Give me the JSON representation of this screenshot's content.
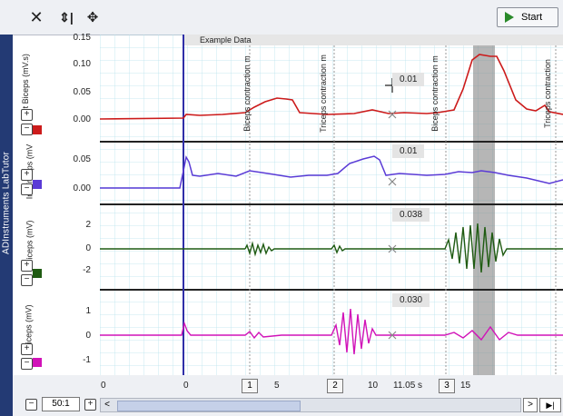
{
  "toolbar": {
    "close_icon": "close-icon",
    "autoscale_icon": "autoscale-icon",
    "move_icon": "move-icon",
    "start_label": "Start"
  },
  "sidebar": {
    "label": "ADInstruments LabTutor"
  },
  "plot": {
    "title_band": "Example Data",
    "channels": [
      {
        "name": "Int Biceps (mV.s)",
        "readout": "0.01",
        "color": "#cc1b1b",
        "ticks": [
          "0.15",
          "0.10",
          "0.05",
          "0.00"
        ]
      },
      {
        "name": "Int Triceps (mV",
        "readout": "0.01",
        "color": "#5a3bd6",
        "ticks": [
          "0.05",
          "0.00"
        ]
      },
      {
        "name": "Biceps (mV)",
        "readout": "0.038",
        "color": "#1f5b12",
        "ticks": [
          "2",
          "0",
          "-2"
        ]
      },
      {
        "name": "Triceps (mV)",
        "readout": "0.030",
        "color": "#d112b8",
        "ticks": [
          "1",
          "0",
          "-1"
        ]
      }
    ],
    "comments": [
      "Biceps contraction m",
      "Triceps contraction m",
      "Biceps contraction m",
      "Triceps contraction"
    ]
  },
  "xaxis": {
    "ticks": [
      "0",
      "0",
      "5",
      "10",
      "15"
    ],
    "markers": [
      "1",
      "2",
      "3"
    ],
    "time_readout": "11.05 s"
  },
  "bottom": {
    "zoom": "50:1",
    "minus": "−",
    "plus": "+",
    "scroll_left": "<",
    "scroll_right": ">",
    "end": "▶|"
  },
  "pm": {
    "plus": "+",
    "minus": "−"
  }
}
